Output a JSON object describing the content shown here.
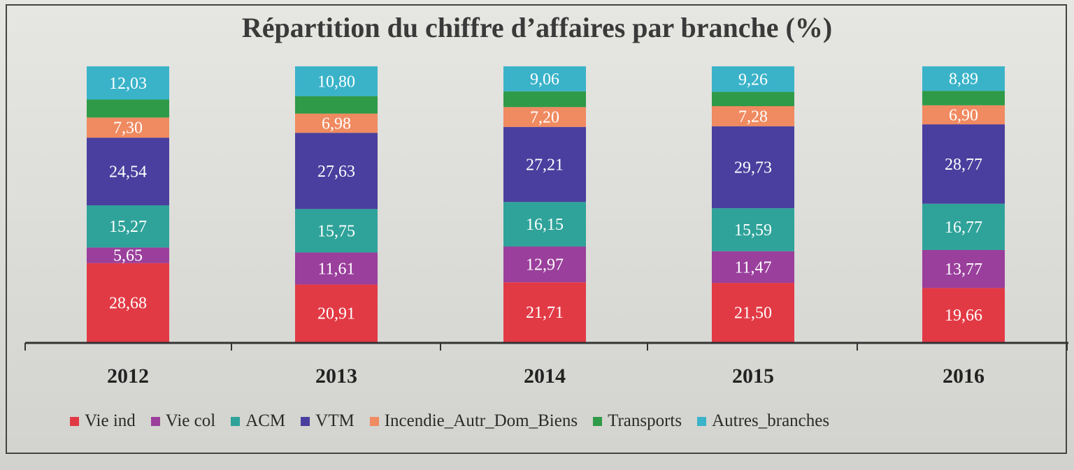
{
  "chart_data": {
    "type": "bar",
    "stacked": true,
    "title": "Répartition du chiffre d’affaires par branche (%)",
    "xlabel": "",
    "ylabel": "",
    "ylim": [
      0,
      100
    ],
    "grid": false,
    "legend_position": "bottom",
    "categories": [
      "2012",
      "2013",
      "2014",
      "2015",
      "2016"
    ],
    "series": [
      {
        "name": "Vie ind",
        "color": "#e23a45",
        "values": [
          28.68,
          20.91,
          21.71,
          21.5,
          19.66
        ],
        "labels": [
          "28,68",
          "20,91",
          "21,71",
          "21,50",
          "19,66"
        ]
      },
      {
        "name": "Vie col",
        "color": "#9a3f9c",
        "values": [
          5.65,
          11.61,
          12.97,
          11.47,
          13.77
        ],
        "labels": [
          "5,65",
          "11,61",
          "12,97",
          "11,47",
          "13,77"
        ]
      },
      {
        "name": "ACM",
        "color": "#2fa39a",
        "values": [
          15.27,
          15.75,
          16.15,
          15.59,
          16.77
        ],
        "labels": [
          "15,27",
          "15,75",
          "16,15",
          "15,59",
          "16,77"
        ]
      },
      {
        "name": "VTM",
        "color": "#4a3f9e",
        "values": [
          24.54,
          27.63,
          27.21,
          29.73,
          28.77
        ],
        "labels": [
          "24,54",
          "27,63",
          "27,21",
          "29,73",
          "28,77"
        ]
      },
      {
        "name": "Incendie_Autr_Dom_Biens",
        "color": "#f08a60",
        "values": [
          7.3,
          6.98,
          7.2,
          7.28,
          6.9
        ],
        "labels": [
          "7,30",
          "6,98",
          "7,20",
          "7,28",
          "6,90"
        ]
      },
      {
        "name": "Transports",
        "color": "#2f9a48",
        "values": [
          6.53,
          6.32,
          5.7,
          5.17,
          5.24
        ],
        "labels": [
          "",
          "",
          "",
          "",
          ""
        ]
      },
      {
        "name": "Autres_branches",
        "color": "#3ab3c9",
        "values": [
          12.03,
          10.8,
          9.06,
          9.26,
          8.89
        ],
        "labels": [
          "12,03",
          "10,80",
          "9,06",
          "9,26",
          "8,89"
        ]
      }
    ]
  }
}
